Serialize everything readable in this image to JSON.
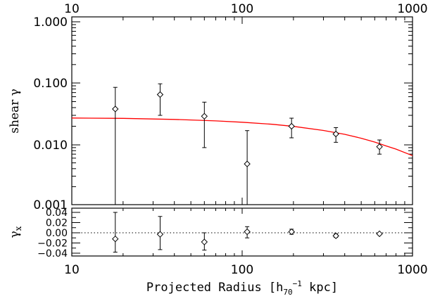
{
  "chart_data": [
    {
      "type": "scatter",
      "panel": "shear",
      "x_scale": "log",
      "y_scale": "log",
      "xlim": [
        10,
        1000
      ],
      "ylim": [
        0.001,
        1.5
      ],
      "x_top_ticks": [
        "10",
        "100",
        "1000"
      ],
      "y_ticks": [
        "1.000",
        "0.100",
        "0.010",
        "0.001"
      ],
      "ylabel": "shear γ",
      "points": [
        {
          "x": 18,
          "y": 0.038,
          "err_low": 1e-06,
          "err_high": 0.085
        },
        {
          "x": 33,
          "y": 0.065,
          "err_low": 0.03,
          "err_high": 0.097
        },
        {
          "x": 60,
          "y": 0.029,
          "err_low": 0.009,
          "err_high": 0.049
        },
        {
          "x": 107,
          "y": 0.0048,
          "err_low": 1e-06,
          "err_high": 0.017
        },
        {
          "x": 195,
          "y": 0.02,
          "err_low": 0.013,
          "err_high": 0.027
        },
        {
          "x": 355,
          "y": 0.015,
          "err_low": 0.011,
          "err_high": 0.019
        },
        {
          "x": 640,
          "y": 0.0093,
          "err_low": 0.007,
          "err_high": 0.012
        }
      ],
      "model_curve": {
        "color": "#ff0000",
        "x": [
          10,
          20,
          40,
          70,
          100,
          150,
          200,
          300,
          400,
          500,
          600,
          700,
          800,
          1000
        ],
        "y": [
          0.0272,
          0.0268,
          0.0258,
          0.0244,
          0.0232,
          0.0215,
          0.0199,
          0.0171,
          0.0148,
          0.0128,
          0.0111,
          0.0096,
          0.0085,
          0.0066
        ]
      }
    },
    {
      "type": "scatter",
      "panel": "cross",
      "x_scale": "log",
      "xlim": [
        10,
        1000
      ],
      "ylim": [
        -0.05,
        0.05
      ],
      "x_ticks": [
        "10",
        "100",
        "1000"
      ],
      "y_ticks": [
        "0.04",
        "0.02",
        "0.00",
        "−0.02",
        "−0.04"
      ],
      "ylabel": "γx",
      "xlabel": "Projected Radius   [h70−1 kpc]",
      "zero_line": "dotted",
      "points": [
        {
          "x": 18,
          "y": -0.012,
          "err_low": -0.038,
          "err_high": 0.04
        },
        {
          "x": 33,
          "y": -0.003,
          "err_low": -0.033,
          "err_high": 0.032
        },
        {
          "x": 60,
          "y": -0.018,
          "err_low": -0.034,
          "err_high": 0.0
        },
        {
          "x": 107,
          "y": 0.002,
          "err_low": -0.01,
          "err_high": 0.012
        },
        {
          "x": 195,
          "y": 0.002,
          "err_low": -0.003,
          "err_high": 0.007
        },
        {
          "x": 355,
          "y": -0.006,
          "err_low": -0.009,
          "err_high": -0.002
        },
        {
          "x": 640,
          "y": -0.002,
          "err_low": -0.004,
          "err_high": 0.0
        }
      ]
    }
  ],
  "labels": {
    "ylabel_top": "shear γ",
    "ylabel_bottom_main": "γ",
    "ylabel_bottom_sub": "x",
    "xlabel_main": "Projected Radius   [h",
    "xlabel_sub": "70",
    "xlabel_sup": "−1",
    "xlabel_tail": " kpc]"
  }
}
